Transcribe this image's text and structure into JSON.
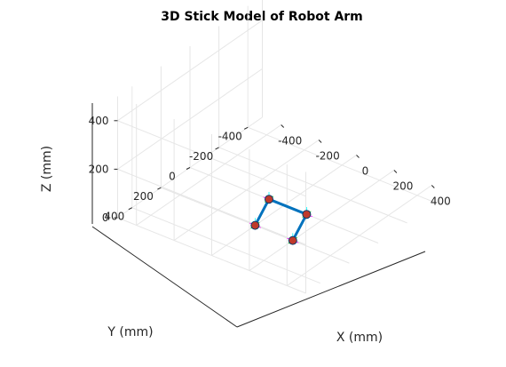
{
  "chart_data": {
    "type": "line3d",
    "title": "3D Stick Model of Robot Arm",
    "xlabel": "X (mm)",
    "ylabel": "Y (mm)",
    "zlabel": "Z (mm)",
    "xlim": [
      -500,
      500
    ],
    "ylim": [
      -500,
      500
    ],
    "zlim": [
      0,
      500
    ],
    "xticks": [
      -400,
      -200,
      0,
      200,
      400
    ],
    "yticks": [
      -400,
      -200,
      0,
      200,
      400
    ],
    "zticks": [
      0,
      200,
      400
    ],
    "xtick_labels": [
      "-400",
      "-200",
      "0",
      "200",
      "400"
    ],
    "ytick_labels": [
      "-400",
      "-200",
      "0",
      "200",
      "400"
    ],
    "ztick_labels": [
      "0",
      "200",
      "400"
    ],
    "grid": true,
    "link_color": "#0072bd",
    "joint_color": "#c0392b",
    "frame_colors": {
      "x": "#ff00ff",
      "y": "#00cc00",
      "z": "#00ffff"
    },
    "joints": [
      {
        "x": 0,
        "y": 200,
        "z": 0
      },
      {
        "x": -80,
        "y": 0,
        "z": 0
      },
      {
        "x": 120,
        "y": 0,
        "z": 0
      },
      {
        "x": 200,
        "y": 200,
        "z": 0
      }
    ]
  }
}
